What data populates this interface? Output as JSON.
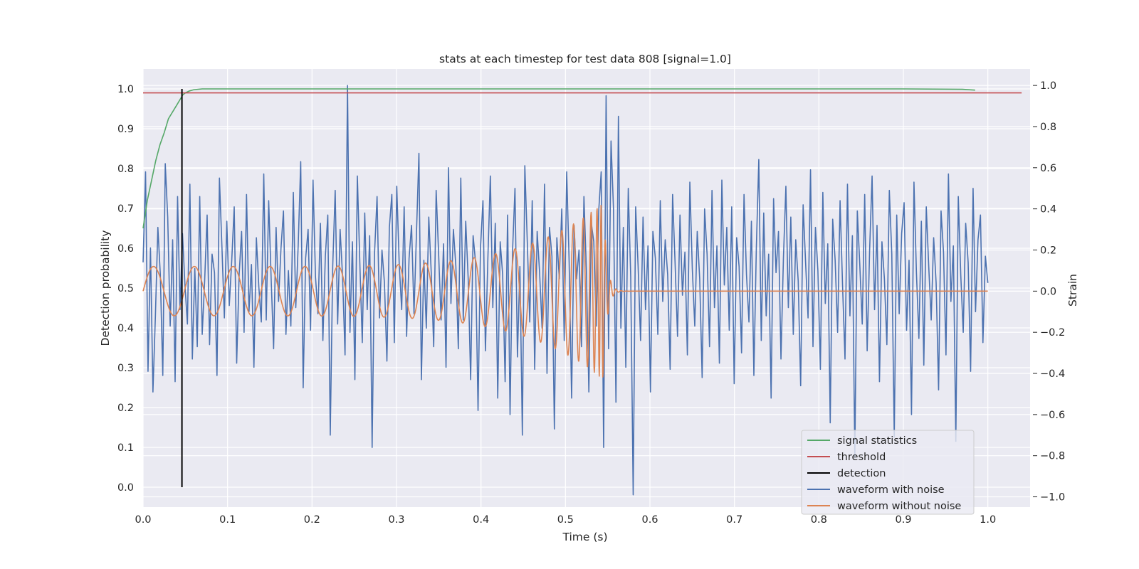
{
  "chart_data": {
    "type": "line",
    "title": "stats at each timestep for test data 808 [signal=1.0]",
    "xlabel": "Time (s)",
    "ylabel_left": "Detection probability",
    "ylabel_right": "Strain",
    "xlim": [
      0.0,
      1.05
    ],
    "ylim_left": [
      -0.05,
      1.05
    ],
    "ylim_right": [
      -1.05,
      1.08
    ],
    "x_ticks": [
      "0.0",
      "0.1",
      "0.2",
      "0.3",
      "0.4",
      "0.5",
      "0.6",
      "0.7",
      "0.8",
      "0.9",
      "1.0"
    ],
    "y_ticks_left": [
      "0.0",
      "0.1",
      "0.2",
      "0.3",
      "0.4",
      "0.5",
      "0.6",
      "0.7",
      "0.8",
      "0.9",
      "1.0"
    ],
    "y_ticks_right": [
      "−1.0",
      "−0.8",
      "−0.6",
      "−0.4",
      "−0.2",
      "0.0",
      "0.2",
      "0.4",
      "0.6",
      "0.8",
      "1.0"
    ],
    "grid": true,
    "legend_position": "lower-right",
    "series": [
      {
        "name": "signal statistics",
        "axis": "left",
        "color": "#55a868",
        "x": [
          0.0,
          0.005,
          0.01,
          0.015,
          0.02,
          0.025,
          0.03,
          0.04,
          0.047,
          0.05,
          0.055,
          0.06,
          0.07,
          0.1,
          0.3,
          0.5,
          0.7,
          0.9,
          0.97,
          0.985
        ],
        "y": [
          0.65,
          0.72,
          0.77,
          0.82,
          0.86,
          0.89,
          0.925,
          0.96,
          0.985,
          0.99,
          0.995,
          0.998,
          1.0,
          1.0,
          1.0,
          1.0,
          1.0,
          1.0,
          0.999,
          0.997
        ]
      },
      {
        "name": "threshold",
        "axis": "left",
        "color": "#c44e52",
        "x": [
          0.0,
          1.04
        ],
        "y": [
          0.99,
          0.99
        ]
      },
      {
        "name": "detection",
        "axis": "left",
        "color": "#000000",
        "x": [
          0.046,
          0.046
        ],
        "y": [
          0.0,
          1.0
        ]
      },
      {
        "name": "waveform with noise",
        "axis": "right",
        "color": "#4c72b0",
        "x_start": 0.0,
        "x_end": 1.0,
        "y": [
          0.14,
          0.58,
          -0.39,
          0.21,
          -0.49,
          -0.12,
          0.31,
          0.08,
          -0.41,
          0.62,
          0.36,
          -0.17,
          0.25,
          -0.44,
          0.46,
          -0.09,
          0.28,
          0.03,
          -0.16,
          0.52,
          -0.33,
          0.11,
          -0.27,
          0.46,
          -0.21,
          0.05,
          0.37,
          -0.26,
          0.18,
          0.09,
          -0.41,
          0.55,
          0.22,
          -0.13,
          0.34,
          -0.07,
          0.15,
          0.41,
          -0.35,
          0.08,
          0.29,
          -0.2,
          0.47,
          -0.1,
          0.13,
          -0.37,
          0.26,
          0.02,
          -0.15,
          0.57,
          -0.14,
          0.44,
          0.06,
          -0.28,
          0.31,
          -0.05,
          0.21,
          0.39,
          -0.21,
          0.1,
          -0.17,
          0.48,
          -0.08,
          0.23,
          0.63,
          -0.47,
          0.16,
          0.3,
          -0.19,
          0.54,
          0.07,
          -0.11,
          0.33,
          -0.24,
          0.17,
          0.37,
          -0.7,
          0.12,
          0.49,
          -0.16,
          0.3,
          0.07,
          -0.31,
          1.0,
          -0.2,
          0.24,
          -0.43,
          0.56,
          0.14,
          -0.25,
          0.38,
          -0.09,
          0.27,
          -0.76,
          0.19,
          0.46,
          -0.13,
          0.2,
          0.04,
          -0.34,
          0.31,
          0.47,
          -0.25,
          0.51,
          0.13,
          -0.09,
          0.41,
          -0.22,
          0.16,
          0.32,
          -0.11,
          0.28,
          0.67,
          -0.43,
          0.15,
          -0.18,
          0.36,
          0.09,
          -0.27,
          0.49,
          0.18,
          -0.14,
          0.23,
          -0.37,
          0.6,
          -0.06,
          0.3,
          0.12,
          -0.28,
          0.55,
          -0.14,
          0.34,
          0.06,
          -0.43,
          0.27,
          0.14,
          -0.58,
          0.21,
          0.44,
          -0.29,
          0.16,
          0.56,
          -0.08,
          0.33,
          -0.52,
          0.24,
          0.08,
          -0.44,
          0.37,
          -0.6,
          0.19,
          0.5,
          -0.32,
          0.12,
          -0.7,
          0.61,
          0.24,
          -0.15,
          0.44,
          -0.38,
          0.29,
          0.09,
          -0.18,
          0.52,
          -0.4,
          0.31,
          0.17,
          -0.67,
          0.26,
          0.06,
          0.4,
          -0.24,
          0.58,
          0.14,
          -0.52,
          0.32,
          0.06,
          0.2,
          -0.27,
          0.46,
          0.1,
          -0.49,
          0.33,
          0.24,
          -0.17,
          0.39,
          0.58,
          -0.76,
          0.95,
          -0.28,
          0.73,
          0.4,
          -0.54,
          0.85,
          -0.18,
          0.31,
          -0.37,
          0.5,
          0.07,
          -0.99,
          0.41,
          0.12,
          -0.24,
          0.36,
          -0.09,
          0.22,
          -0.49,
          0.29,
          0.16,
          -0.21,
          0.44,
          -0.05,
          0.25,
          0.08,
          -0.38,
          0.47,
          0.14,
          -0.22,
          0.37,
          -0.02,
          0.19,
          -0.31,
          0.53,
          0.11,
          -0.17,
          0.29,
          0.06,
          -0.42,
          0.4,
          0.18,
          -0.27,
          0.49,
          -0.08,
          0.22,
          -0.35,
          0.54,
          0.03,
          0.31,
          -0.19,
          0.41,
          -0.45,
          0.26,
          0.12,
          -0.3,
          0.47,
          0.08,
          -0.15,
          0.34,
          -0.41,
          0.21,
          0.64,
          -0.24,
          0.38,
          -0.12,
          0.18,
          -0.52,
          0.45,
          0.09,
          0.29,
          -0.33,
          0.16,
          0.51,
          -0.08,
          0.36,
          -0.21,
          0.25,
          0.05,
          -0.46,
          0.42,
          0.14,
          -0.13,
          0.59,
          -0.27,
          0.31,
          0.1,
          -0.38,
          0.48,
          -0.06,
          0.23,
          -0.64,
          0.35,
          0.15,
          -0.2,
          0.44,
          0.03,
          -0.33,
          0.52,
          -0.12,
          0.27,
          -0.81,
          0.39,
          0.13,
          -0.16,
          0.47,
          -0.29,
          0.2,
          0.56,
          -0.09,
          0.32,
          -0.44,
          0.24,
          0.06,
          -0.26,
          0.49,
          0.18,
          -0.71,
          0.37,
          -0.11,
          0.28,
          0.43,
          -0.19,
          0.15,
          -0.6,
          0.53,
          0.09,
          -0.23,
          0.34,
          -0.36,
          0.41,
          0.12,
          -0.14,
          0.26,
          0.04,
          -0.48,
          0.39,
          0.19,
          -0.31,
          0.57,
          -0.05,
          0.22,
          -0.73,
          0.46,
          0.08,
          -0.2,
          0.33,
          0.14,
          -0.39,
          0.5,
          -0.1,
          0.25,
          0.37,
          -0.25,
          0.17,
          0.04
        ],
        "note": ""
      },
      {
        "name": "waveform without noise",
        "axis": "right",
        "color": "#dd8452",
        "description": "chirp, amplitude ~0.12 growing to ~0.43 near 0.545 s, then ringdown to 0.0 after ~0.56 s",
        "x_start": 0.0,
        "x_end": 1.0,
        "merger_time": 0.545
      }
    ]
  },
  "legend": {
    "items": [
      {
        "label": "signal statistics",
        "color": "#55a868"
      },
      {
        "label": "threshold",
        "color": "#c44e52"
      },
      {
        "label": "detection",
        "color": "#000000"
      },
      {
        "label": "waveform with noise",
        "color": "#4c72b0"
      },
      {
        "label": "waveform without noise",
        "color": "#dd8452"
      }
    ]
  },
  "style": {
    "axes_bg": "#eaeaf2",
    "grid_color": "#ffffff",
    "text_color": "#262626"
  }
}
